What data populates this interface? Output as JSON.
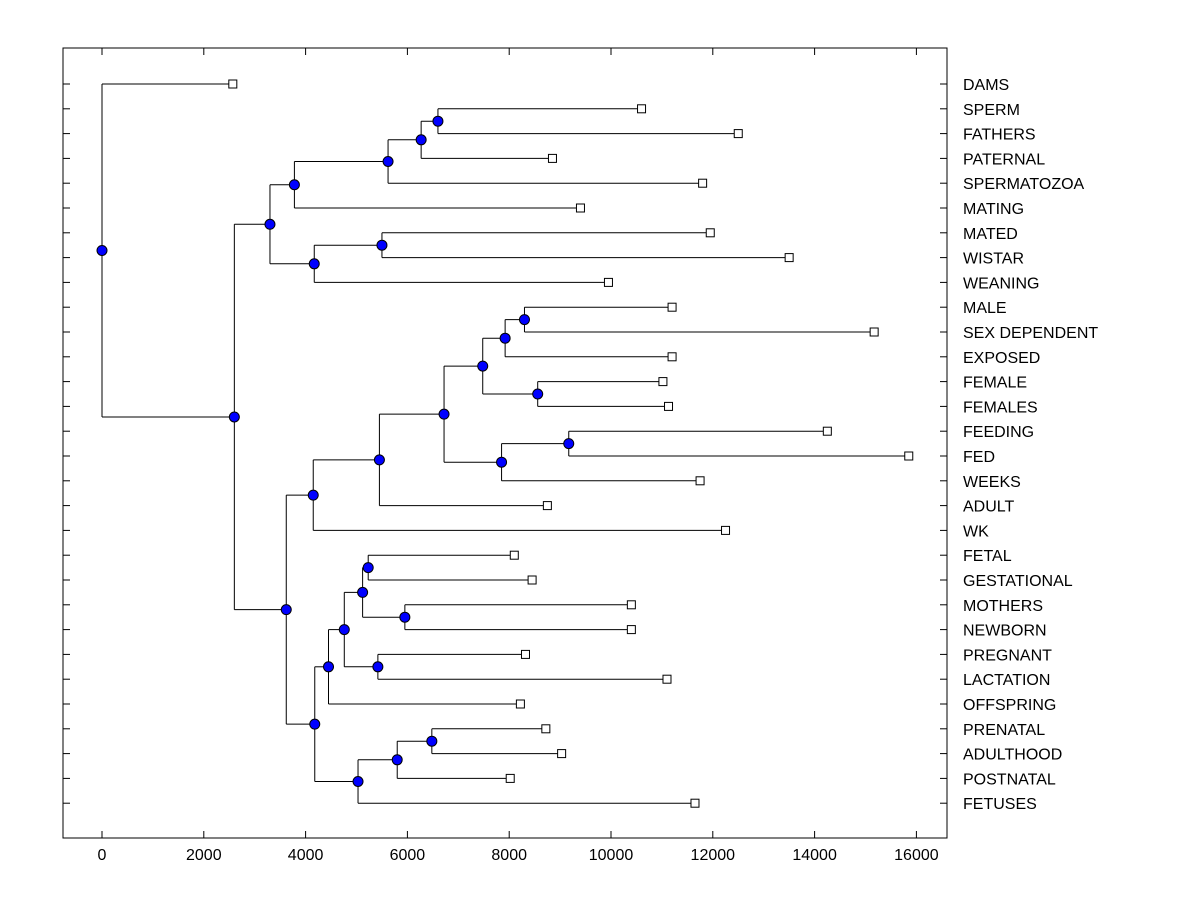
{
  "chart_data": {
    "type": "dendrogram",
    "title": "",
    "xlabel": "",
    "ylabel": "",
    "xlim": [
      -800,
      16600
    ],
    "x_ticks": [
      0,
      2000,
      4000,
      6000,
      8000,
      10000,
      12000,
      14000,
      16000
    ],
    "x_tick_labels": [
      "0",
      "2000",
      "4000",
      "6000",
      "8000",
      "10000",
      "12000",
      "14000",
      "16000"
    ],
    "grid": false,
    "leaves": [
      {
        "id": "DAMS",
        "label": "DAMS",
        "x": 2570
      },
      {
        "id": "SPERM",
        "label": "SPERM",
        "x": 10600
      },
      {
        "id": "FATHERS",
        "label": "FATHERS",
        "x": 12500
      },
      {
        "id": "PATERNAL",
        "label": "PATERNAL",
        "x": 8850
      },
      {
        "id": "SPERMATOZOA",
        "label": "SPERMATOZOA",
        "x": 11800
      },
      {
        "id": "MATING",
        "label": "MATING",
        "x": 9400
      },
      {
        "id": "MATED",
        "label": "MATED",
        "x": 11950
      },
      {
        "id": "WISTAR",
        "label": "WISTAR",
        "x": 13500
      },
      {
        "id": "WEANING",
        "label": "WEANING",
        "x": 9950
      },
      {
        "id": "MALE",
        "label": "MALE",
        "x": 11200
      },
      {
        "id": "SEX_DEPENDENT",
        "label": "SEX DEPENDENT",
        "x": 15170
      },
      {
        "id": "EXPOSED",
        "label": "EXPOSED",
        "x": 11200
      },
      {
        "id": "FEMALE",
        "label": "FEMALE",
        "x": 11020
      },
      {
        "id": "FEMALES",
        "label": "FEMALES",
        "x": 11130
      },
      {
        "id": "FEEDING",
        "label": "FEEDING",
        "x": 14250
      },
      {
        "id": "FED",
        "label": "FED",
        "x": 15850
      },
      {
        "id": "WEEKS",
        "label": "WEEKS",
        "x": 11750
      },
      {
        "id": "ADULT",
        "label": "ADULT",
        "x": 8750
      },
      {
        "id": "WK",
        "label": "WK",
        "x": 12250
      },
      {
        "id": "FETAL",
        "label": "FETAL",
        "x": 8100
      },
      {
        "id": "GESTATIONAL",
        "label": "GESTATIONAL",
        "x": 8450
      },
      {
        "id": "MOTHERS",
        "label": "MOTHERS",
        "x": 10400
      },
      {
        "id": "NEWBORN",
        "label": "NEWBORN",
        "x": 10400
      },
      {
        "id": "PREGNANT",
        "label": "PREGNANT",
        "x": 8320
      },
      {
        "id": "LACTATION",
        "label": "LACTATION",
        "x": 11100
      },
      {
        "id": "OFFSPRING",
        "label": "OFFSPRING",
        "x": 8220
      },
      {
        "id": "PRENATAL",
        "label": "PRENATAL",
        "x": 8720
      },
      {
        "id": "ADULTHOOD",
        "label": "ADULTHOOD",
        "x": 9030
      },
      {
        "id": "POSTNATAL",
        "label": "POSTNATAL",
        "x": 8020
      },
      {
        "id": "FETUSES",
        "label": "FETUSES",
        "x": 11650
      }
    ],
    "nodes": [
      {
        "id": "n1",
        "x": 6600,
        "children": [
          "SPERM",
          "FATHERS"
        ]
      },
      {
        "id": "n2",
        "x": 6270,
        "children": [
          "n1",
          "PATERNAL"
        ]
      },
      {
        "id": "n3",
        "x": 5620,
        "children": [
          "n2",
          "SPERMATOZOA"
        ]
      },
      {
        "id": "n4",
        "x": 3780,
        "children": [
          "n3",
          "MATING"
        ]
      },
      {
        "id": "n5",
        "x": 5500,
        "children": [
          "MATED",
          "WISTAR"
        ]
      },
      {
        "id": "n6",
        "x": 4170,
        "children": [
          "n5",
          "WEANING"
        ]
      },
      {
        "id": "n7",
        "x": 3300,
        "children": [
          "n4",
          "n6"
        ]
      },
      {
        "id": "n8",
        "x": 8300,
        "children": [
          "MALE",
          "SEX_DEPENDENT"
        ]
      },
      {
        "id": "n9",
        "x": 7920,
        "children": [
          "n8",
          "EXPOSED"
        ]
      },
      {
        "id": "n10",
        "x": 8560,
        "children": [
          "FEMALE",
          "FEMALES"
        ]
      },
      {
        "id": "n11",
        "x": 7480,
        "children": [
          "n9",
          "n10"
        ]
      },
      {
        "id": "n12",
        "x": 9170,
        "children": [
          "FEEDING",
          "FED"
        ]
      },
      {
        "id": "n13",
        "x": 7850,
        "children": [
          "n12",
          "WEEKS"
        ]
      },
      {
        "id": "n14",
        "x": 6720,
        "children": [
          "n11",
          "n13"
        ]
      },
      {
        "id": "n15",
        "x": 5450,
        "children": [
          "n14",
          "ADULT"
        ]
      },
      {
        "id": "n16",
        "x": 4150,
        "children": [
          "n15",
          "WK"
        ]
      },
      {
        "id": "n17",
        "x": 5230,
        "children": [
          "FETAL",
          "GESTATIONAL"
        ]
      },
      {
        "id": "n18",
        "x": 5950,
        "children": [
          "MOTHERS",
          "NEWBORN"
        ]
      },
      {
        "id": "n19",
        "x": 5120,
        "children": [
          "n17",
          "n18"
        ]
      },
      {
        "id": "n20",
        "x": 5420,
        "children": [
          "PREGNANT",
          "LACTATION"
        ]
      },
      {
        "id": "n21",
        "x": 4760,
        "children": [
          "n19",
          "n20"
        ]
      },
      {
        "id": "n22",
        "x": 4450,
        "children": [
          "n21",
          "OFFSPRING"
        ]
      },
      {
        "id": "n23",
        "x": 6480,
        "children": [
          "PRENATAL",
          "ADULTHOOD"
        ]
      },
      {
        "id": "n24",
        "x": 5800,
        "children": [
          "n23",
          "POSTNATAL"
        ]
      },
      {
        "id": "n25",
        "x": 5030,
        "children": [
          "n24",
          "FETUSES"
        ]
      },
      {
        "id": "n26",
        "x": 4180,
        "children": [
          "n22",
          "n25"
        ]
      },
      {
        "id": "n27",
        "x": 3620,
        "children": [
          "n16",
          "n26"
        ]
      },
      {
        "id": "n28",
        "x": 2600,
        "children": [
          "n7",
          "n27"
        ]
      },
      {
        "id": "n29",
        "x": 0,
        "children": [
          "DAMS",
          "n28"
        ]
      }
    ],
    "root": "n29",
    "colors": {
      "node_fill": "#0000ff",
      "line": "#000000",
      "leaf_marker_fill": "#ffffff"
    }
  }
}
